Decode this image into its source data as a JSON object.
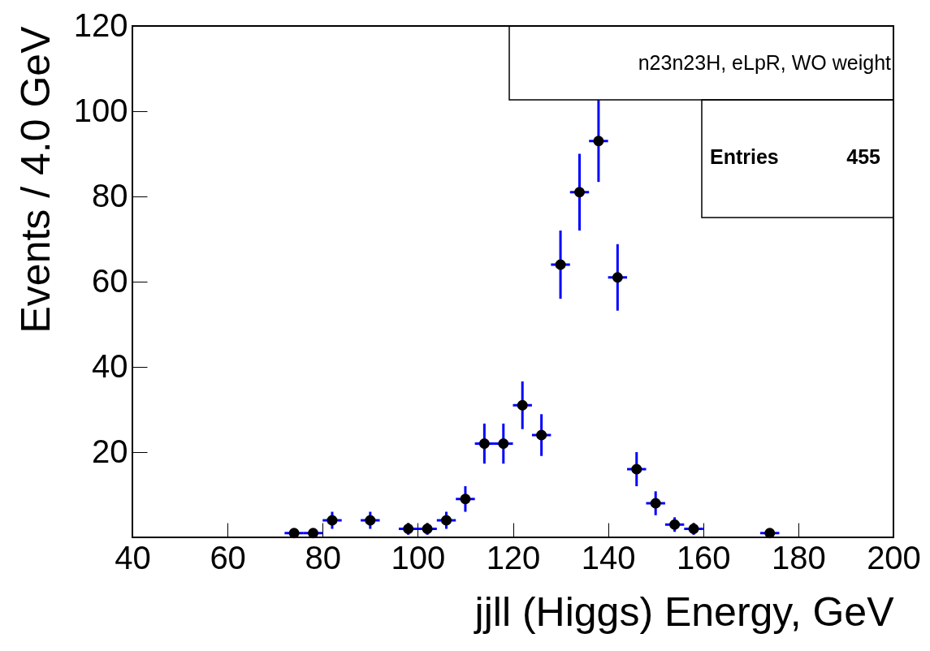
{
  "chart_data": {
    "type": "scatter",
    "title": "n23n23H, eLpR, WO weight",
    "xlabel": "jjll (Higgs) Energy, GeV",
    "ylabel": "Events / 4.0 GeV",
    "annotations": [
      "Entries",
      "455"
    ],
    "x": [
      74,
      78,
      82,
      90,
      98,
      102,
      106,
      110,
      114,
      118,
      122,
      126,
      130,
      134,
      138,
      142,
      146,
      150,
      154,
      158,
      174
    ],
    "series": [
      {
        "color": "#000000",
        "values": [
          1,
          1,
          4,
          4,
          2,
          2,
          4,
          9,
          22,
          22,
          31,
          24,
          64,
          81,
          93,
          61,
          16,
          8,
          3,
          2,
          1
        ],
        "errors": [
          null,
          null,
          2,
          2,
          1.4,
          1.4,
          2,
          3,
          4.7,
          4.7,
          5.6,
          4.9,
          8,
          9,
          9.6,
          7.8,
          4,
          2.8,
          1.7,
          1.4,
          null
        ],
        "xerrors": [
          2,
          2,
          2,
          2,
          2,
          2,
          2,
          2,
          2,
          2,
          2,
          2,
          2,
          2,
          2,
          2,
          2,
          2,
          2,
          2,
          2
        ]
      }
    ],
    "xlim": [
      40,
      200
    ],
    "xticks": [
      40,
      60,
      80,
      100,
      120,
      140,
      160,
      180,
      200
    ],
    "ylim": [
      0,
      120
    ],
    "yticks": [
      20,
      40,
      60,
      80,
      100,
      120
    ],
    "grid": false,
    "marker": "circle"
  }
}
